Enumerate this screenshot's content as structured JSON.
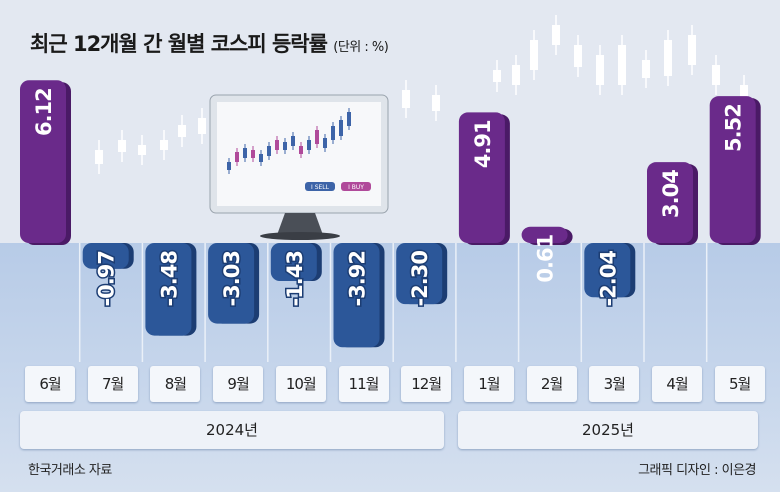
{
  "title": "최근 12개월 간 월별 코스피 등락률",
  "unit": "(단위 : %)",
  "source": "한국거래소 자료",
  "credit": "그래픽 디자인 : 이은경",
  "monitor": {
    "sell_label": "I SELL",
    "buy_label": "I BUY"
  },
  "colors": {
    "positive": "#6a2a8a",
    "negative": "#2c5799",
    "background_top": "#e3e8f1",
    "background_bottom": "#b7cbe7"
  },
  "chart_data": {
    "type": "bar",
    "categories": [
      "6월",
      "7월",
      "8월",
      "9월",
      "10월",
      "11월",
      "12월",
      "1월",
      "2월",
      "3월",
      "4월",
      "5월"
    ],
    "values": [
      6.12,
      -0.97,
      -3.48,
      -3.03,
      -1.43,
      -3.92,
      -2.3,
      4.91,
      0.61,
      -2.04,
      3.04,
      5.52
    ],
    "value_labels": [
      "6.12",
      "-0.97",
      "-3.48",
      "-3.03",
      "-1.43",
      "-3.92",
      "-2.30",
      "4.91",
      "0.61",
      "-2.04",
      "3.04",
      "5.52"
    ],
    "groups": [
      {
        "label": "2024년",
        "from": "6월",
        "to": "12월"
      },
      {
        "label": "2025년",
        "from": "1월",
        "to": "5월"
      }
    ],
    "title": "최근 12개월 간 월별 코스피 등락률",
    "ylabel": "(단위 : %)",
    "grid": false
  }
}
